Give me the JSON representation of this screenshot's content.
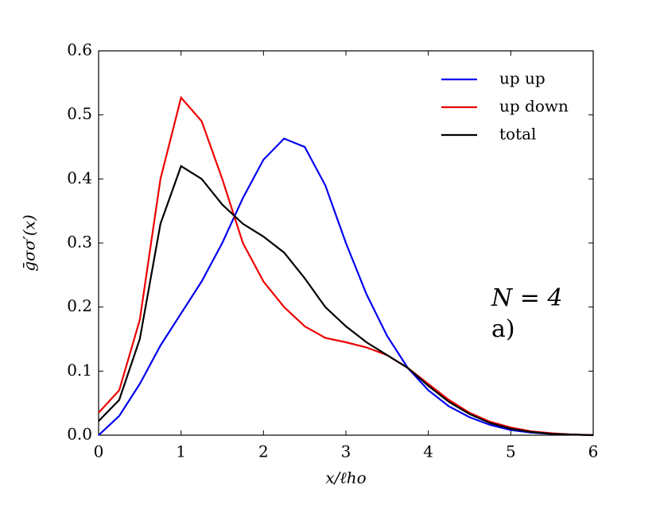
{
  "chart_data": {
    "type": "line",
    "xlabel": "x/ℓho",
    "ylabel": "ḡσσ′(x)",
    "annotations": [
      "N = 4",
      "a)"
    ],
    "x": [
      0,
      0.25,
      0.5,
      0.75,
      1,
      1.25,
      1.5,
      1.75,
      2,
      2.25,
      2.5,
      2.75,
      3,
      3.25,
      3.5,
      3.75,
      4,
      4.25,
      4.5,
      4.75,
      5,
      5.25,
      5.5,
      5.75,
      6
    ],
    "series": [
      {
        "name": "up up",
        "color": "#0000ee",
        "values": [
          0,
          0.03,
          0.08,
          0.14,
          0.19,
          0.24,
          0.3,
          0.37,
          0.43,
          0.463,
          0.45,
          0.39,
          0.3,
          0.22,
          0.155,
          0.105,
          0.07,
          0.045,
          0.028,
          0.016,
          0.008,
          0.004,
          0.002,
          0.001,
          0
        ]
      },
      {
        "name": "up down",
        "color": "#ee0000",
        "values": [
          0.035,
          0.07,
          0.18,
          0.4,
          0.527,
          0.49,
          0.4,
          0.3,
          0.24,
          0.2,
          0.17,
          0.152,
          0.145,
          0.137,
          0.125,
          0.105,
          0.08,
          0.055,
          0.035,
          0.021,
          0.012,
          0.006,
          0.003,
          0.001,
          0
        ]
      },
      {
        "name": "total",
        "color": "#000000",
        "values": [
          0.022,
          0.055,
          0.15,
          0.33,
          0.42,
          0.4,
          0.36,
          0.33,
          0.31,
          0.285,
          0.245,
          0.2,
          0.17,
          0.145,
          0.125,
          0.105,
          0.077,
          0.052,
          0.033,
          0.019,
          0.01,
          0.005,
          0.002,
          0.001,
          0
        ]
      }
    ],
    "xlim": [
      0,
      6
    ],
    "xticks": [
      0,
      1,
      2,
      3,
      4,
      5,
      6
    ],
    "ylim": [
      0,
      0.6
    ],
    "yticks": [
      {
        "value": 0,
        "label": "0.0"
      },
      0.1,
      0.2,
      0.3,
      0.4,
      0.5,
      0.6
    ],
    "legend": "upper right",
    "grid": false
  }
}
